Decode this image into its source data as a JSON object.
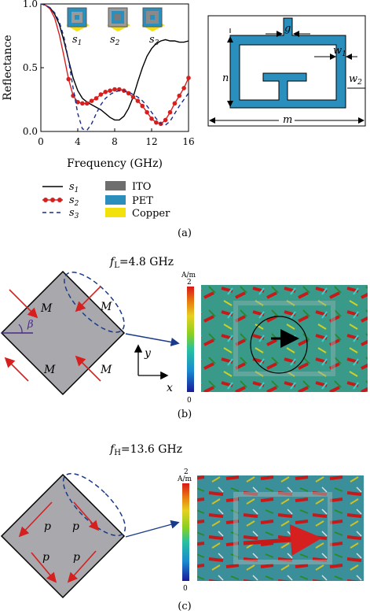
{
  "figure": {
    "panel_a": {
      "label": "(a)",
      "structure_labels": [
        "s1",
        "s2",
        "s3"
      ],
      "legend_lines": [
        {
          "name": "s",
          "sub": "1",
          "style": "solid",
          "color": "#000000"
        },
        {
          "name": "s",
          "sub": "2",
          "style": "dots",
          "color": "#d62020"
        },
        {
          "name": "s",
          "sub": "3",
          "style": "dashed",
          "color": "#1a2a8a"
        }
      ],
      "legend_materials": [
        {
          "name": "ITO",
          "color": "#6e6e6e"
        },
        {
          "name": "PET",
          "color": "#2a8fbd"
        },
        {
          "name": "Copper",
          "color": "#f2e10c"
        }
      ],
      "unit_cell_labels": {
        "g": "g",
        "w1": "w",
        "w1_sub": "1",
        "w2": "w",
        "w2_sub": "2",
        "n": "n",
        "m": "m"
      }
    },
    "panel_b": {
      "label": "(b)",
      "freq_symbol": "f",
      "freq_sub": "L",
      "freq_value": "=4.8 GHz",
      "moment_label": "M",
      "beta": "β",
      "axis_y": "y",
      "axis_x": "x",
      "colorbar_unit": "A/m",
      "colorbar_max": "2",
      "colorbar_min": "0"
    },
    "panel_c": {
      "label": "(c)",
      "freq_symbol": "f",
      "freq_sub": "H",
      "freq_value": "=13.6 GHz",
      "moment_label": "p",
      "colorbar_unit": "A/m",
      "colorbar_max": "2",
      "colorbar_min": "0"
    }
  },
  "chart_data": {
    "type": "line",
    "title": "",
    "xlabel": "Frequency (GHz)",
    "ylabel": "Reflectance",
    "xlim": [
      0,
      16
    ],
    "ylim": [
      0,
      1
    ],
    "xticks": [
      "0",
      "4",
      "8",
      "12",
      "16"
    ],
    "yticks": [
      "0.0",
      "0.5",
      "1.0"
    ],
    "grid": false,
    "series": [
      {
        "name": "s1",
        "x": [
          0,
          0.5,
          1,
          1.5,
          2,
          2.5,
          3,
          3.5,
          4,
          4.5,
          5,
          5.5,
          6,
          6.5,
          7,
          7.5,
          8,
          8.5,
          9,
          9.5,
          10,
          10.5,
          11,
          11.5,
          12,
          12.5,
          13,
          13.5,
          14,
          14.5,
          15,
          15.5,
          16
        ],
        "y": [
          1.0,
          0.99,
          0.97,
          0.92,
          0.84,
          0.71,
          0.56,
          0.42,
          0.32,
          0.26,
          0.23,
          0.21,
          0.19,
          0.17,
          0.14,
          0.11,
          0.09,
          0.09,
          0.12,
          0.18,
          0.27,
          0.39,
          0.5,
          0.59,
          0.65,
          0.69,
          0.71,
          0.72,
          0.71,
          0.71,
          0.7,
          0.7,
          0.71
        ]
      },
      {
        "name": "s2",
        "x": [
          0,
          0.5,
          1,
          1.5,
          2,
          2.5,
          3,
          3.5,
          4,
          4.5,
          5,
          5.5,
          6,
          6.5,
          7,
          7.5,
          8,
          8.5,
          9,
          9.5,
          10,
          10.5,
          11,
          11.5,
          12,
          12.5,
          13,
          13.5,
          14,
          14.5,
          15,
          15.5,
          16
        ],
        "y": [
          1.0,
          0.99,
          0.96,
          0.89,
          0.76,
          0.59,
          0.41,
          0.28,
          0.23,
          0.22,
          0.22,
          0.24,
          0.26,
          0.29,
          0.31,
          0.32,
          0.33,
          0.33,
          0.32,
          0.3,
          0.27,
          0.24,
          0.2,
          0.15,
          0.1,
          0.07,
          0.06,
          0.09,
          0.15,
          0.22,
          0.28,
          0.34,
          0.42
        ]
      },
      {
        "name": "s3",
        "x": [
          0,
          0.5,
          1,
          1.5,
          2,
          2.5,
          3,
          3.5,
          4,
          4.5,
          5,
          5.5,
          6,
          6.5,
          7,
          7.5,
          8,
          8.5,
          9,
          9.5,
          10,
          10.5,
          11,
          11.5,
          12,
          12.5,
          13,
          13.5,
          14,
          14.5,
          15,
          15.5,
          16
        ],
        "y": [
          1.0,
          0.99,
          0.97,
          0.93,
          0.86,
          0.74,
          0.56,
          0.34,
          0.14,
          0.02,
          0.01,
          0.06,
          0.14,
          0.21,
          0.26,
          0.29,
          0.31,
          0.32,
          0.32,
          0.31,
          0.29,
          0.27,
          0.24,
          0.2,
          0.15,
          0.1,
          0.06,
          0.05,
          0.08,
          0.14,
          0.2,
          0.25,
          0.3
        ]
      }
    ]
  }
}
